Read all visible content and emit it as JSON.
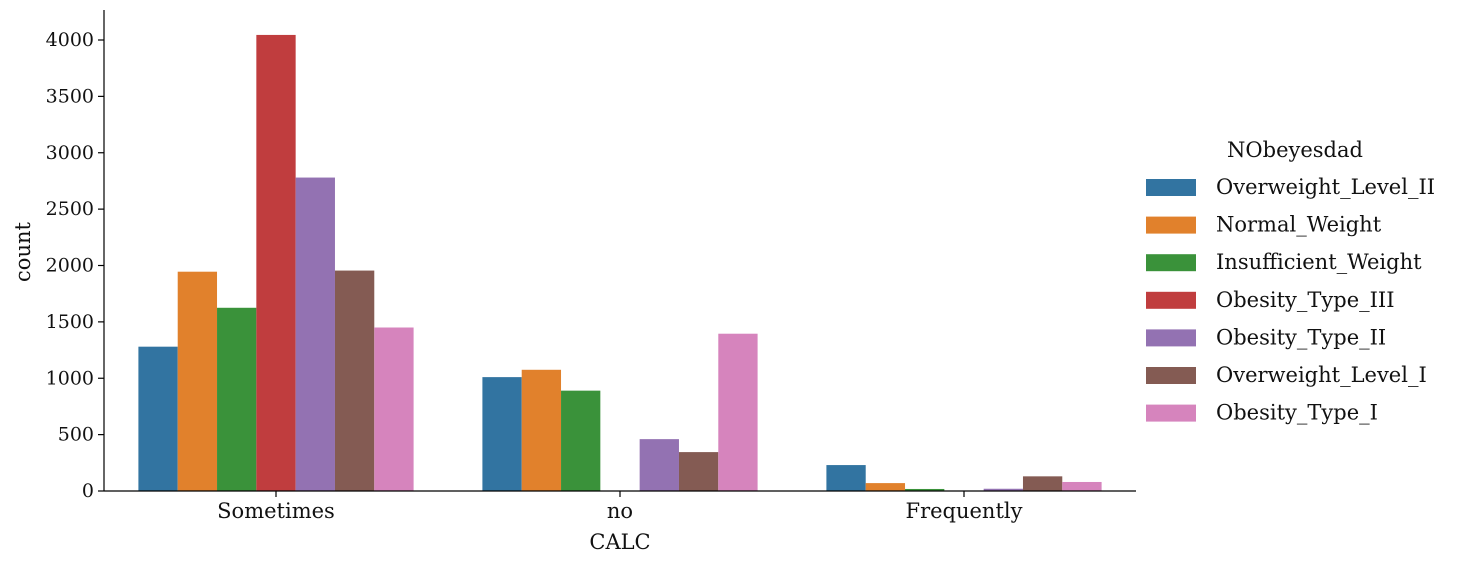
{
  "chart_data": {
    "type": "bar",
    "xlabel": "CALC",
    "ylabel": "count",
    "categories": [
      "Sometimes",
      "no",
      "Frequently"
    ],
    "ylim": [
      0,
      4250
    ],
    "yticks": [
      0,
      500,
      1000,
      1500,
      2000,
      2500,
      3000,
      3500,
      4000
    ],
    "legend": {
      "title": "NObeyesdad",
      "placement": "right"
    },
    "grid": false,
    "series": [
      {
        "name": "Overweight_Level_II",
        "color": "#3274a1",
        "values": [
          1280,
          1010,
          230
        ]
      },
      {
        "name": "Normal_Weight",
        "color": "#e1812c",
        "values": [
          1945,
          1075,
          70
        ]
      },
      {
        "name": "Insufficient_Weight",
        "color": "#3a923a",
        "values": [
          1625,
          890,
          18
        ]
      },
      {
        "name": "Obesity_Type_III",
        "color": "#c03d3e",
        "values": [
          4045,
          0,
          0
        ]
      },
      {
        "name": "Obesity_Type_II",
        "color": "#9372b2",
        "values": [
          2780,
          460,
          20
        ]
      },
      {
        "name": "Overweight_Level_I",
        "color": "#845b53",
        "values": [
          1955,
          345,
          130
        ]
      },
      {
        "name": "Obesity_Type_I",
        "color": "#d684bd",
        "values": [
          1450,
          1395,
          80
        ]
      }
    ]
  }
}
